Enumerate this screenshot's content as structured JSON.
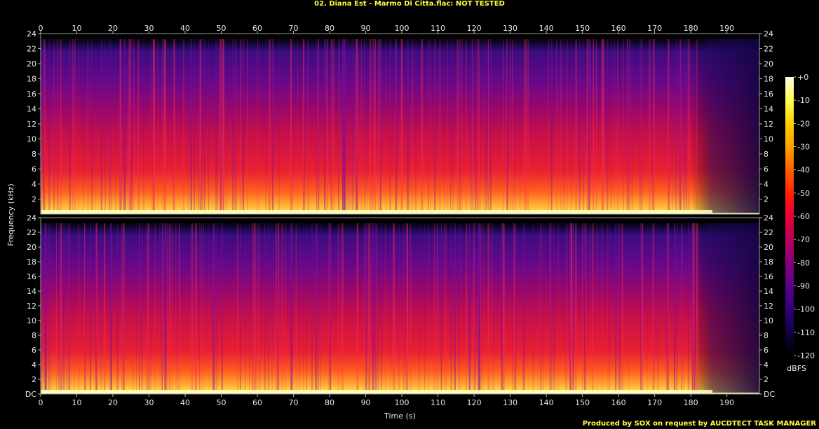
{
  "chart_data": {
    "type": "heatmap",
    "title": "02. Diana Est - Marmo Di Citta.flac: NOT TESTED",
    "xlabel": "Time (s)",
    "ylabel": "Frequency (kHz)",
    "xlim": [
      0,
      199
    ],
    "ylim": [
      0,
      24
    ],
    "x_ticks": [
      0,
      10,
      20,
      30,
      40,
      50,
      60,
      70,
      80,
      90,
      100,
      110,
      120,
      130,
      140,
      150,
      160,
      170,
      180,
      190
    ],
    "y_ticks_top": [
      "2",
      "4",
      "6",
      "8",
      "10",
      "12",
      "14",
      "16",
      "18",
      "20",
      "22",
      "24"
    ],
    "y_ticks_bottom": [
      "DC",
      "2",
      "4",
      "6",
      "8",
      "10",
      "12",
      "14",
      "16",
      "18",
      "20",
      "22",
      "24"
    ],
    "channels": 2,
    "colorbar": {
      "label": "dBFS",
      "ticks": [
        "+0",
        "-10",
        "-20",
        "-30",
        "-40",
        "-50",
        "-60",
        "-70",
        "-80",
        "-90",
        "-100",
        "-110",
        "-120"
      ],
      "colors": [
        "#ffffe8",
        "#ffff50",
        "#ffd000",
        "#ffa000",
        "#ff6000",
        "#ff2000",
        "#e8003a",
        "#b8005a",
        "#88007a",
        "#5a0088",
        "#300078",
        "#100040",
        "#000000"
      ]
    },
    "grid": true
  },
  "footer": "Produced by SOX on request by AUCDTECT TASK MANAGER"
}
